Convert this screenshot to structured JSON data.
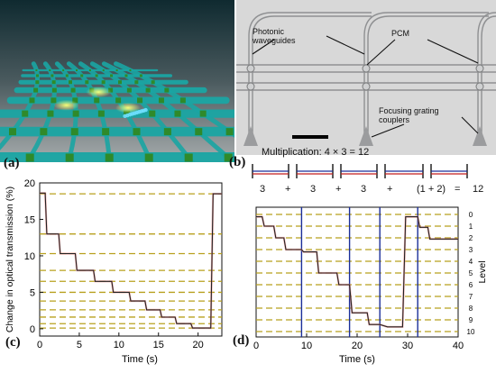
{
  "figure": {
    "panel_a": {
      "letter": "(a)"
    },
    "panel_b": {
      "letter": "(b)",
      "label_waveguides": "Photonic\nwaveguides",
      "label_pcm": "PCM",
      "label_couplers": "Focusing grating\ncouplers"
    },
    "panel_c": {
      "letter": "(c)"
    },
    "panel_d": {
      "letter": "(d)",
      "multiplication_title": "Multiplication: 4 × 3 = 12",
      "equation_terms": [
        "3",
        "+",
        "3",
        "+",
        "3",
        "+",
        "(1 + 2)",
        "=",
        "12"
      ]
    }
  },
  "chart_data": [
    {
      "id": "c",
      "type": "line",
      "xlabel": "Time (s)",
      "ylabel": "Change in optical transmission (%)",
      "xlim": [
        0,
        23
      ],
      "ylim": [
        -1,
        20
      ],
      "xticks": [
        "0",
        "5",
        "10",
        "15",
        "20"
      ],
      "yticks": [
        "0",
        "5",
        "10",
        "15",
        "20"
      ],
      "levels": [
        18.5,
        13,
        10.3,
        8,
        6.5,
        5,
        3.8,
        2.6,
        1.6,
        0.7,
        0.1
      ],
      "series": [
        {
          "x": [
            0,
            0.7,
            0.9,
            2.4,
            2.6,
            4.5,
            4.7,
            6.8,
            7,
            9.1,
            9.3,
            11.3,
            11.5,
            13.3,
            13.5,
            15.2,
            15.4,
            17.1,
            17.3,
            19.1,
            19.3,
            21.6,
            21.9,
            23
          ],
          "y": [
            18.6,
            18.6,
            13,
            13,
            10.3,
            10.3,
            8,
            8,
            6.5,
            6.5,
            5,
            5,
            3.8,
            3.8,
            2.6,
            2.6,
            1.6,
            1.6,
            0.7,
            0.7,
            0.1,
            0.1,
            18.5,
            18.5
          ]
        }
      ]
    },
    {
      "id": "d",
      "type": "line",
      "xlabel": "Time (s)",
      "ylabel": "Level",
      "xlim": [
        0,
        40
      ],
      "xticks": [
        "0",
        "10",
        "20",
        "30",
        "40"
      ],
      "right_ticks": [
        "0",
        "1",
        "2",
        "3",
        "4",
        "5",
        "6",
        "7",
        "8",
        "9",
        "10"
      ],
      "operation_markers_x": [
        9,
        18.5,
        24.5,
        32
      ],
      "series": [
        {
          "x": [
            0,
            1.2,
            1.6,
            3.5,
            3.9,
            5.5,
            5.9,
            9,
            9.4,
            12,
            12.4,
            16,
            16.4,
            18.5,
            19,
            22,
            22.4,
            24.5,
            26,
            29,
            29.6,
            32,
            32.4,
            34,
            34.4,
            40
          ],
          "y": [
            0.2,
            0.2,
            1,
            1,
            2,
            2,
            3,
            3,
            3.2,
            3.2,
            5,
            5,
            6,
            6,
            8.4,
            8.4,
            9.4,
            9.4,
            9.6,
            9.6,
            0.2,
            0.2,
            1.1,
            1.1,
            2.1,
            2.1
          ]
        }
      ]
    }
  ]
}
